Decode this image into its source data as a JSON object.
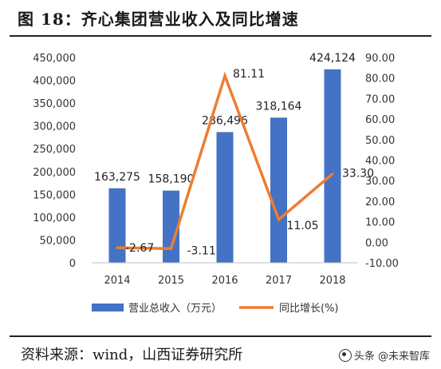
{
  "figure": {
    "title": "图 18：齐心集团营业收入及同比增速",
    "source": "资料来源：wind，山西证券研究所",
    "watermark": "头条 @未来智库"
  },
  "colors": {
    "bar": "#4472C4",
    "line": "#ED7D31",
    "text": "#333333"
  },
  "chart_data": {
    "type": "bar",
    "categories": [
      "2014",
      "2015",
      "2016",
      "2017",
      "2018"
    ],
    "series": [
      {
        "name": "营业总收入（万元）",
        "type": "bar",
        "axis": "left",
        "values": [
          163275,
          158190,
          286496,
          318164,
          424124
        ],
        "labels": [
          "163,275",
          "158,190",
          "286,496",
          "318,164",
          "424,124"
        ]
      },
      {
        "name": "同比增长(%)",
        "type": "line",
        "axis": "right",
        "values": [
          -2.67,
          -3.11,
          81.11,
          11.05,
          33.3
        ],
        "labels": [
          "-2.67",
          "-3.11",
          "81.11",
          "11.05",
          "33.30"
        ]
      }
    ],
    "y_left": {
      "min": 0,
      "max": 450000,
      "step": 50000,
      "ticks": [
        "0",
        "50,000",
        "100,000",
        "150,000",
        "200,000",
        "250,000",
        "300,000",
        "350,000",
        "400,000",
        "450,000"
      ]
    },
    "y_right": {
      "min": -10,
      "max": 90,
      "step": 10,
      "ticks": [
        "-10.00",
        "0.00",
        "10.00",
        "20.00",
        "30.00",
        "40.00",
        "50.00",
        "60.00",
        "70.00",
        "80.00",
        "90.00"
      ]
    },
    "legend_position": "bottom",
    "grid": false
  }
}
